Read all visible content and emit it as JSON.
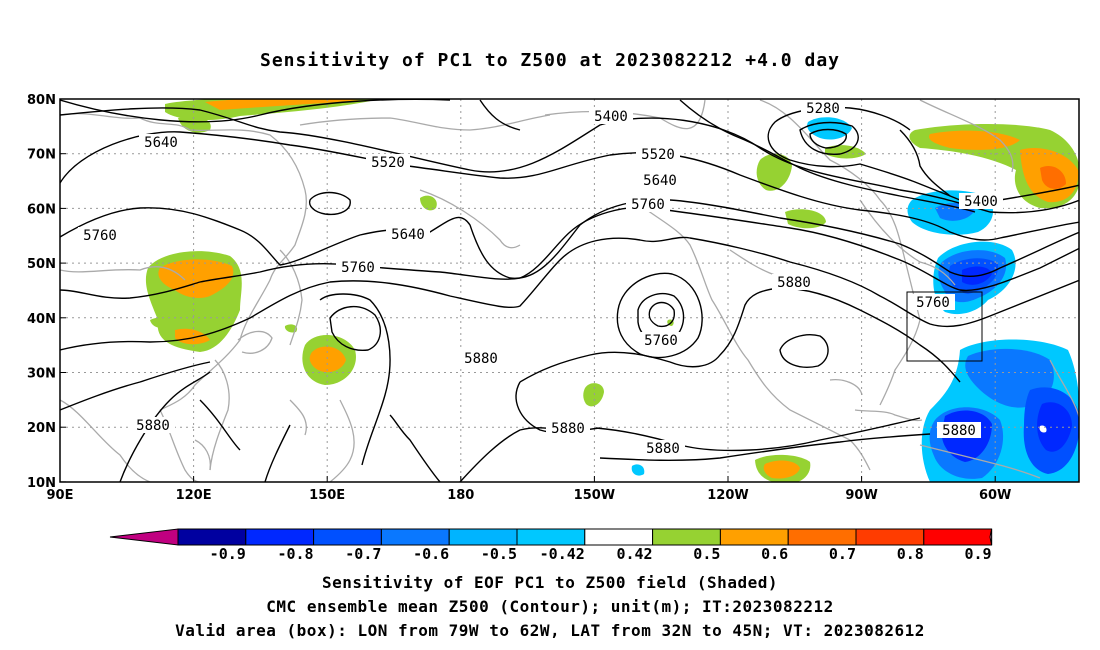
{
  "title": "Sensitivity of PC1 to Z500 at 2023082212 +4.0 day",
  "map": {
    "lat_ticks": [
      "80N",
      "70N",
      "60N",
      "50N",
      "40N",
      "30N",
      "20N",
      "10N"
    ],
    "lon_ticks": [
      "90E",
      "120E",
      "150E",
      "180",
      "150W",
      "120W",
      "90W",
      "60W"
    ],
    "contour_labels": [
      "5280",
      "5400",
      "5400",
      "5520",
      "5520",
      "5640",
      "5640",
      "5640",
      "5760",
      "5760",
      "5760",
      "5760",
      "5760",
      "5880",
      "5880",
      "5880",
      "5880",
      "5880"
    ],
    "valid_box": {
      "lon_from": "79W",
      "lon_to": "62W",
      "lat_from": "32N",
      "lat_to": "45N"
    }
  },
  "colorbar": {
    "labels": [
      "-0.9",
      "-0.8",
      "-0.7",
      "-0.6",
      "-0.5",
      "-0.42",
      "0.42",
      "0.5",
      "0.6",
      "0.7",
      "0.8",
      "0.9"
    ],
    "colors": [
      "#0000a0",
      "#0028ff",
      "#0050ff",
      "#0a78ff",
      "#00b4ff",
      "#00c8ff",
      "#ffffff",
      "#96d232",
      "#ffa000",
      "#ff6e00",
      "#ff3c00",
      "#ff0000"
    ],
    "under_color": "#c00080",
    "over_color": "#ff9ed2"
  },
  "captions": {
    "line1": "Sensitivity of EOF PC1 to Z500 field (Shaded)",
    "line2": "CMC ensemble mean Z500 (Contour); unit(m); IT:2023082212",
    "line3": "Valid area (box): LON from 79W to 62W, LAT from 32N to 45N; VT: 2023082612"
  }
}
